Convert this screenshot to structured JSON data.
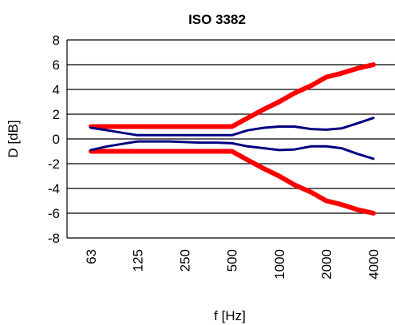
{
  "chart_data": {
    "type": "line",
    "title": "ISO 3382",
    "xlabel": "f [Hz]",
    "ylabel": "D [dB]",
    "ylim": [
      -8,
      8
    ],
    "yticks": [
      8,
      6,
      4,
      2,
      0,
      -2,
      -4,
      -6,
      -8
    ],
    "grid": true,
    "legend": "none",
    "categories": [
      "63",
      "125",
      "250",
      "500",
      "1000",
      "2000",
      "4000"
    ],
    "x": [
      63,
      80,
      100,
      125,
      160,
      200,
      250,
      315,
      400,
      500,
      630,
      800,
      1000,
      1250,
      1600,
      2000,
      2500,
      3150,
      4000
    ],
    "series": [
      {
        "color": "#ff0000",
        "width": 6,
        "values": [
          1,
          1,
          1,
          1,
          1,
          1,
          1,
          1,
          1,
          1,
          1.7,
          2.4,
          3.0,
          3.7,
          4.3,
          5.0,
          5.3,
          5.7,
          6.0
        ]
      },
      {
        "color": "#ff0000",
        "width": 6,
        "values": [
          -1,
          -1,
          -1,
          -1,
          -1,
          -1,
          -1,
          -1,
          -1,
          -1,
          -1.7,
          -2.4,
          -3.0,
          -3.7,
          -4.3,
          -5.0,
          -5.3,
          -5.7,
          -6.0
        ]
      },
      {
        "color": "#000080",
        "width": 3,
        "values": [
          0.9,
          0.7,
          0.5,
          0.3,
          0.3,
          0.3,
          0.3,
          0.3,
          0.3,
          0.3,
          0.7,
          0.9,
          1.0,
          1.0,
          0.8,
          0.75,
          0.85,
          1.25,
          1.7
        ]
      },
      {
        "color": "#000080",
        "width": 3,
        "values": [
          -0.9,
          -0.6,
          -0.4,
          -0.2,
          -0.2,
          -0.2,
          -0.25,
          -0.3,
          -0.3,
          -0.35,
          -0.6,
          -0.75,
          -0.9,
          -0.85,
          -0.6,
          -0.6,
          -0.75,
          -1.2,
          -1.6
        ]
      }
    ]
  }
}
